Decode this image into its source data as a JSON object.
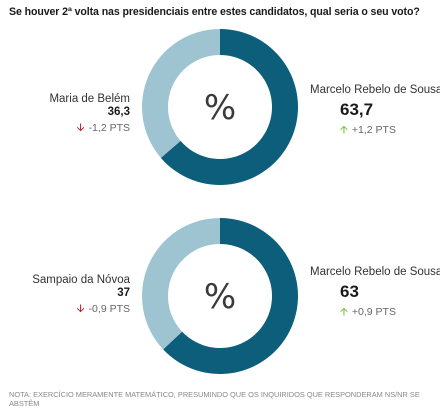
{
  "title": "Se houver 2ª volta nas presidenciais entre estes candidatos, qual seria o seu voto?",
  "chart_data": [
    {
      "type": "pie",
      "center_label": "%",
      "series": [
        {
          "name": "Marcelo Rebelo de Sousa",
          "value": 63.7,
          "value_label": "63,7",
          "change": "+1,2 PTS",
          "direction": "up",
          "color": "#0d5e7b"
        },
        {
          "name": "Maria de Belém",
          "value": 36.3,
          "value_label": "36,3",
          "change": "-1,2 PTS",
          "direction": "down",
          "color": "#9fc4d1"
        }
      ]
    },
    {
      "type": "pie",
      "center_label": "%",
      "series": [
        {
          "name": "Marcelo Rebelo de Sousa",
          "value": 63,
          "value_label": "63",
          "change": "+0,9 PTS",
          "direction": "up",
          "color": "#0d5e7b"
        },
        {
          "name": "Sampaio da Nóvoa",
          "value": 37,
          "value_label": "37",
          "change": "-0,9 PTS",
          "direction": "down",
          "color": "#9fc4d1"
        }
      ]
    }
  ],
  "note": "NOTA: EXERCÍCIO MERAMENTE MATEMÁTICO, PRESUMINDO QUE OS INQUIRIDOS QUE RESPONDERAM NS/NR SE ABSTÊM",
  "icons": {
    "down": "arrow-down-icon",
    "up": "arrow-up-icon"
  }
}
